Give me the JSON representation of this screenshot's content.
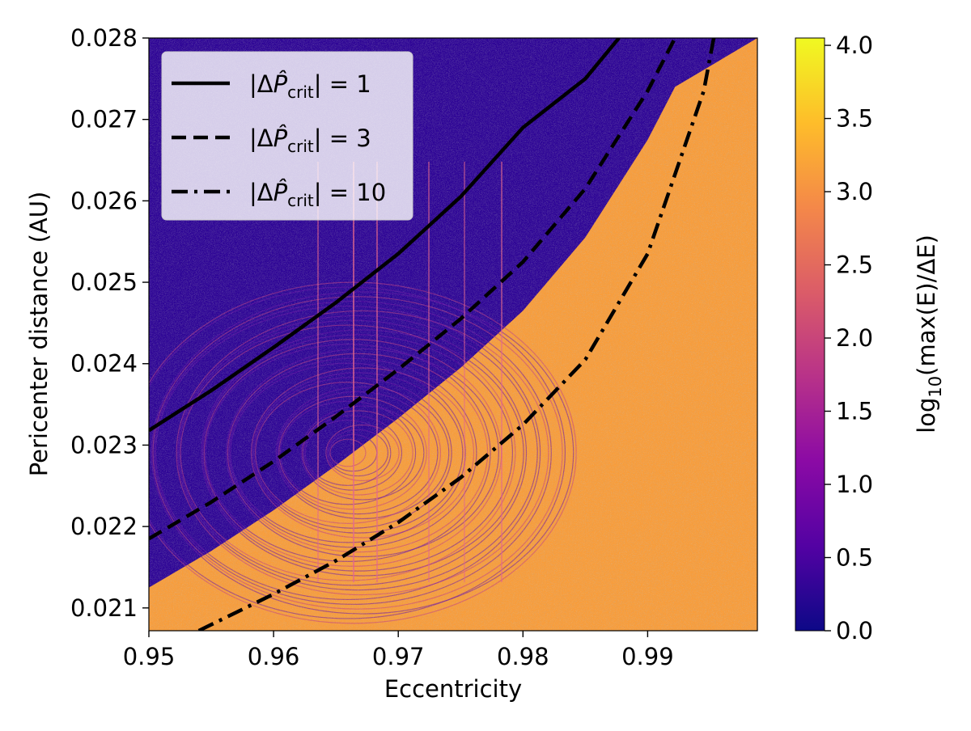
{
  "chart_data": {
    "type": "heatmap",
    "xlabel": "Eccentricity",
    "ylabel": "Pericenter distance (AU)",
    "xlim": [
      0.95,
      0.9988
    ],
    "ylim": [
      0.02072,
      0.028
    ],
    "xticks": [
      0.95,
      0.96,
      0.97,
      0.98,
      0.99
    ],
    "xtick_labels": [
      "0.95",
      "0.96",
      "0.97",
      "0.98",
      "0.99"
    ],
    "yticks": [
      0.021,
      0.022,
      0.023,
      0.024,
      0.025,
      0.026,
      0.027,
      0.028
    ],
    "ytick_labels": [
      "0.021",
      "0.022",
      "0.023",
      "0.024",
      "0.025",
      "0.026",
      "0.027",
      "0.028"
    ],
    "colormap": "plasma",
    "colormap_stops": [
      "#0d0887",
      "#5302a3",
      "#8b0aa5",
      "#b83289",
      "#db5c68",
      "#f48849",
      "#febd2a",
      "#f0f921"
    ],
    "colorbar": {
      "label_prefix": "log",
      "label_subscript": "10",
      "label_suffix": "(max(E)/ΔE)",
      "range": [
        0.0,
        4.05
      ],
      "ticks": [
        0.0,
        0.5,
        1.0,
        1.5,
        2.0,
        2.5,
        3.0,
        3.5,
        4.0
      ],
      "tick_labels": [
        "0.0",
        "0.5",
        "1.0",
        "1.5",
        "2.0",
        "2.5",
        "3.0",
        "3.5",
        "4.0"
      ]
    },
    "region_values": {
      "stable_region_color": "#2e0596",
      "unstable_region_color": "#f89d3b"
    },
    "series": [
      {
        "name": "|ΔP̂crit| = 1",
        "label_delta": "|Δ",
        "label_sub": "crit",
        "label_value": "| = 1",
        "style": "solid",
        "x": [
          0.95,
          0.955,
          0.96,
          0.965,
          0.97,
          0.975,
          0.98,
          0.985,
          0.9877
        ],
        "y": [
          0.02318,
          0.02367,
          0.0242,
          0.02475,
          0.02535,
          0.02605,
          0.0269,
          0.0275,
          0.028
        ]
      },
      {
        "name": "|ΔP̂crit| = 3",
        "label_delta": "|Δ",
        "label_sub": "crit",
        "label_value": "| = 3",
        "style": "dashed",
        "x": [
          0.95,
          0.955,
          0.96,
          0.965,
          0.97,
          0.975,
          0.98,
          0.985,
          0.99,
          0.9922
        ],
        "y": [
          0.02185,
          0.0223,
          0.0228,
          0.02335,
          0.02393,
          0.02455,
          0.02525,
          0.02615,
          0.02735,
          0.028
        ]
      },
      {
        "name": "|ΔP̂crit| = 10",
        "label_delta": "|Δ",
        "label_sub": "crit",
        "label_value": "| = 10",
        "style": "dashdot",
        "x": [
          0.954,
          0.96,
          0.965,
          0.97,
          0.975,
          0.98,
          0.985,
          0.99,
          0.9945,
          0.9953
        ],
        "y": [
          0.02072,
          0.02117,
          0.02158,
          0.02205,
          0.0226,
          0.02325,
          0.02405,
          0.02535,
          0.02735,
          0.028
        ]
      }
    ],
    "legend": "upper-left"
  }
}
